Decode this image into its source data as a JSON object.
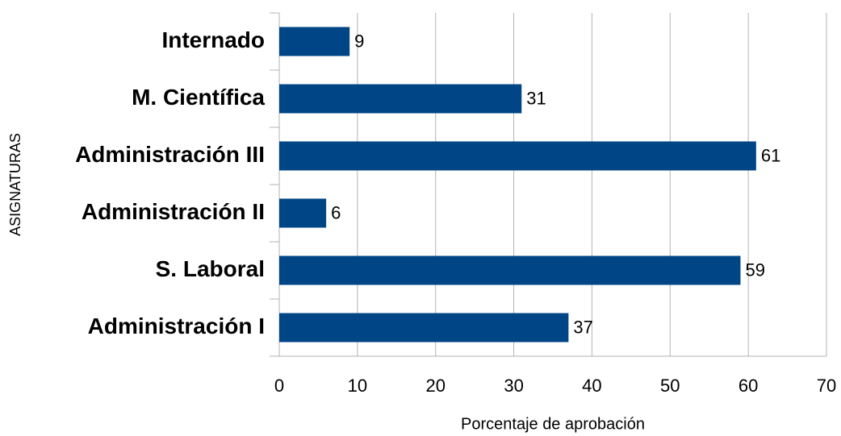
{
  "chart_data": {
    "type": "barh",
    "x_label": "Porcentaje de aprobación",
    "y_label": "ASIGNATURAS",
    "categories": [
      "Internado",
      "M. Científica",
      "Administración III",
      "Administración II",
      "S. Laboral",
      "Administración I"
    ],
    "values": [
      9,
      31,
      61,
      6,
      59,
      37
    ],
    "color": "#004586",
    "xlim": [
      0,
      70
    ],
    "xticks": [
      0,
      10,
      20,
      30,
      40,
      50,
      60,
      70
    ],
    "grid": true
  }
}
